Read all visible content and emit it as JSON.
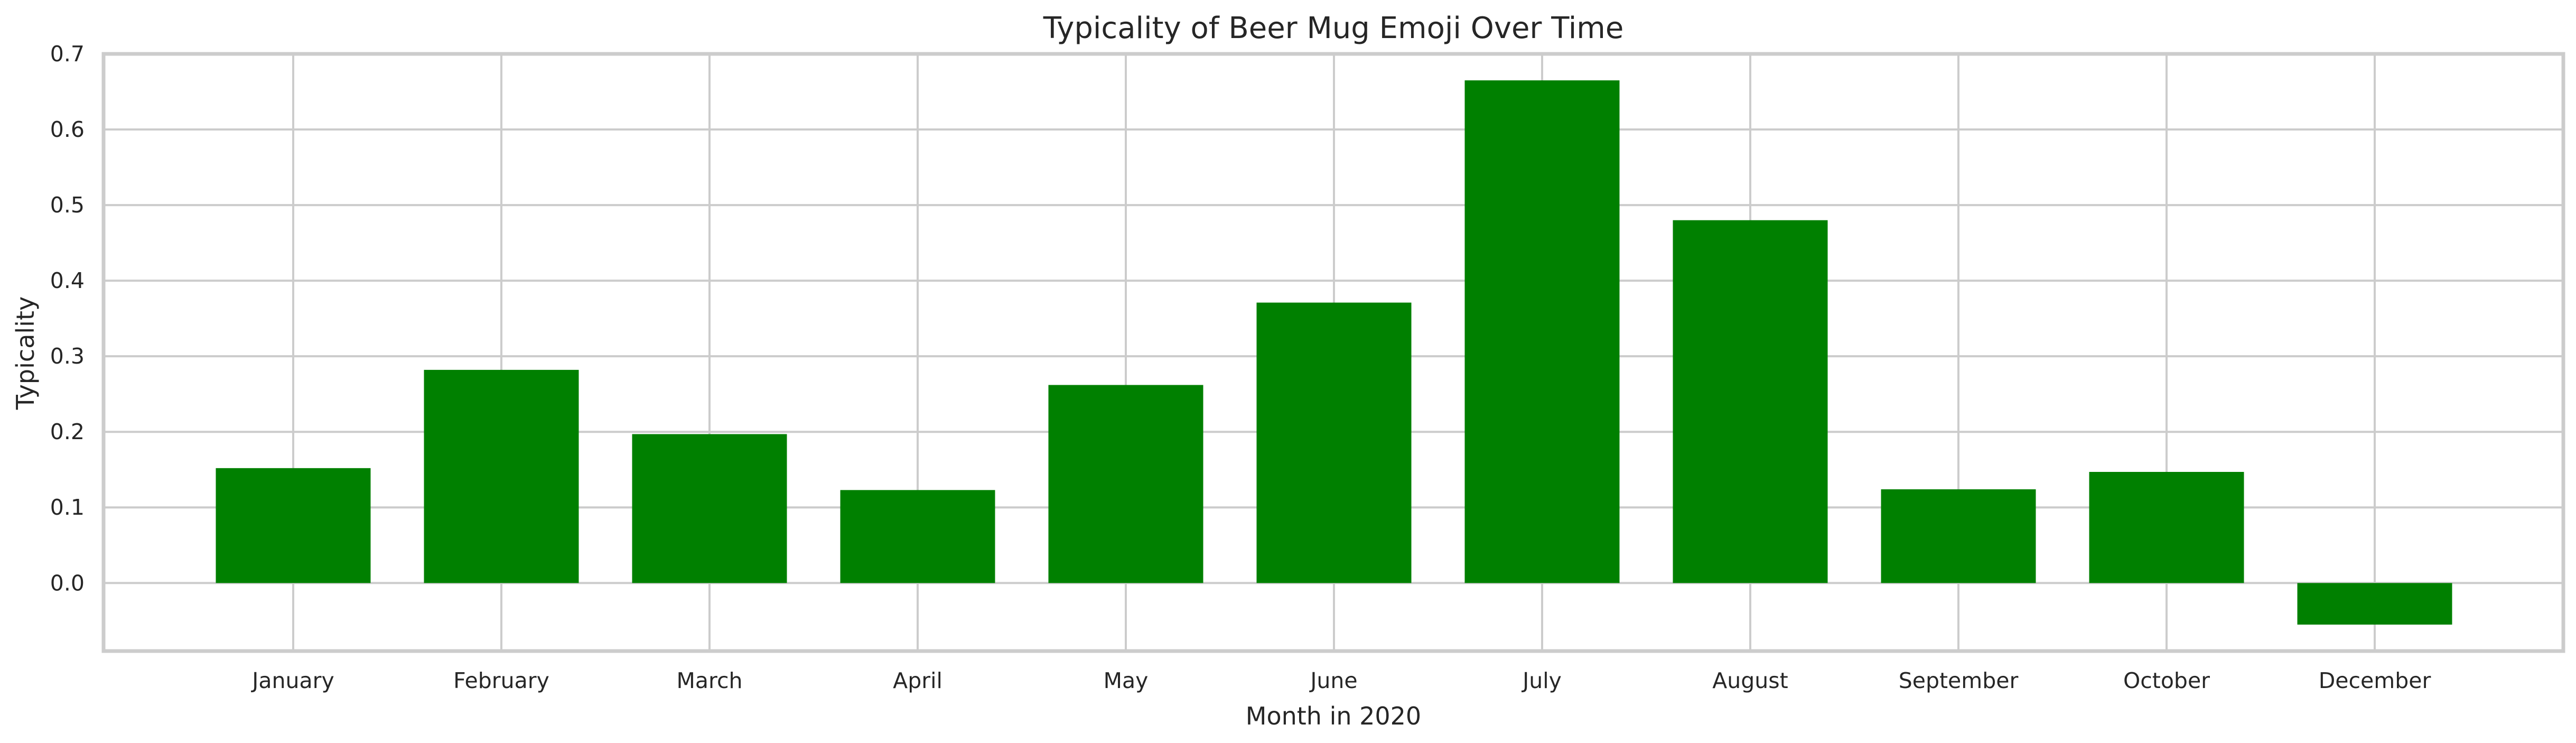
{
  "chart_data": {
    "type": "bar",
    "title": "Typicality of Beer Mug Emoji Over Time",
    "xlabel": "Month in 2020",
    "ylabel": "Typicality",
    "categories": [
      "January",
      "February",
      "March",
      "April",
      "May",
      "June",
      "July",
      "August",
      "September",
      "October",
      "December"
    ],
    "values": [
      0.152,
      0.282,
      0.197,
      0.123,
      0.262,
      0.371,
      0.665,
      0.48,
      0.124,
      0.147,
      -0.055
    ],
    "ylim": [
      -0.09,
      0.7
    ],
    "yticks": [
      0.0,
      0.1,
      0.2,
      0.3,
      0.4,
      0.5,
      0.6,
      0.7
    ],
    "ytick_labels": [
      "0.0",
      "0.1",
      "0.2",
      "0.3",
      "0.4",
      "0.5",
      "0.6",
      "0.7"
    ],
    "bar_color": "#008000",
    "grid": true,
    "legend": "none"
  }
}
